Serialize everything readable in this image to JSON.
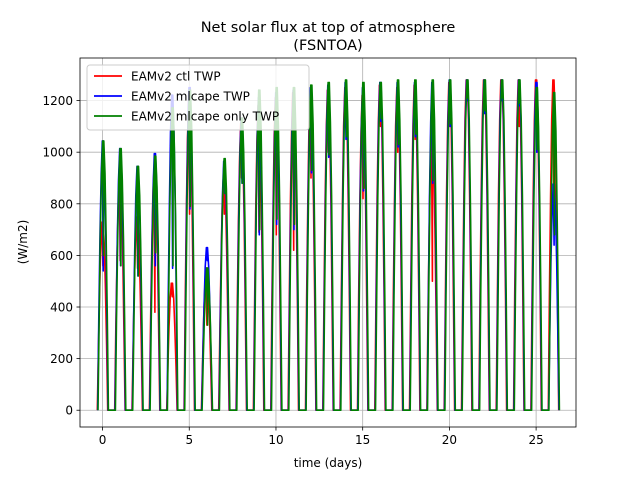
{
  "chart_data": {
    "type": "line",
    "title": "Net solar flux at top of atmosphere",
    "subtitle": "(FSNTOA)",
    "xlabel": "time (days)",
    "ylabel": "(W/m2)",
    "xlim": [
      -1.3,
      27.3
    ],
    "ylim": [
      -65,
      1365
    ],
    "x_ticks": [
      0,
      5,
      10,
      15,
      20,
      25
    ],
    "y_ticks": [
      0,
      200,
      400,
      600,
      800,
      1000,
      1200
    ],
    "x_tick_labels": [
      "0",
      "5",
      "10",
      "15",
      "20",
      "25"
    ],
    "y_tick_labels": [
      "0",
      "200",
      "400",
      "600",
      "800",
      "1000",
      "1200"
    ],
    "grid": true,
    "legend_position": "upper-left",
    "series": [
      {
        "name": "EAMv2 ctl TWP",
        "color": "#ff0000",
        "daily_peak": [
          740,
          920,
          760,
          950,
          500,
          1220,
          560,
          920,
          1130,
          1200,
          1230,
          1250,
          1250,
          1260,
          1270,
          1240,
          1280,
          1270,
          1280,
          1100,
          1290,
          1300,
          1300,
          1300,
          1300,
          1300,
          1300
        ],
        "daily_dip": [
          560,
          580,
          550,
          380,
          440,
          760,
          330,
          760,
          900,
          690,
          680,
          620,
          900,
          1000,
          1100,
          820,
          1100,
          1000,
          1050,
          500,
          1100,
          1200,
          1150,
          1200,
          1100,
          1150,
          860
        ]
      },
      {
        "name": "EAMv2 mlcape TWP",
        "color": "#0000ff",
        "daily_peak": [
          1060,
          1030,
          960,
          1010,
          1240,
          1270,
          640,
          980,
          1150,
          1230,
          1250,
          1260,
          1270,
          1280,
          1290,
          1270,
          1290,
          1290,
          1290,
          1290,
          1300,
          1300,
          1300,
          1300,
          1300,
          1290,
          890
        ],
        "daily_dip": [
          540,
          560,
          520,
          560,
          550,
          780,
          580,
          840,
          880,
          680,
          720,
          700,
          920,
          980,
          1050,
          850,
          1120,
          1020,
          1060,
          880,
          1100,
          1200,
          1150,
          1200,
          1180,
          1000,
          640
        ]
      },
      {
        "name": "EAMv2 mlcape only TWP",
        "color": "#008000",
        "daily_peak": [
          1060,
          1030,
          960,
          1000,
          1190,
          1260,
          560,
          990,
          1150,
          1260,
          1270,
          1270,
          1280,
          1290,
          1300,
          1290,
          1290,
          1300,
          1300,
          1300,
          1300,
          1300,
          1300,
          1300,
          1300,
          1270,
          1250
        ],
        "daily_dip": [
          600,
          560,
          520,
          610,
          560,
          790,
          330,
          840,
          880,
          700,
          740,
          720,
          930,
          990,
          1060,
          860,
          1130,
          1030,
          1070,
          890,
          1110,
          1210,
          1160,
          1210,
          1190,
          1010,
          680
        ]
      }
    ]
  }
}
